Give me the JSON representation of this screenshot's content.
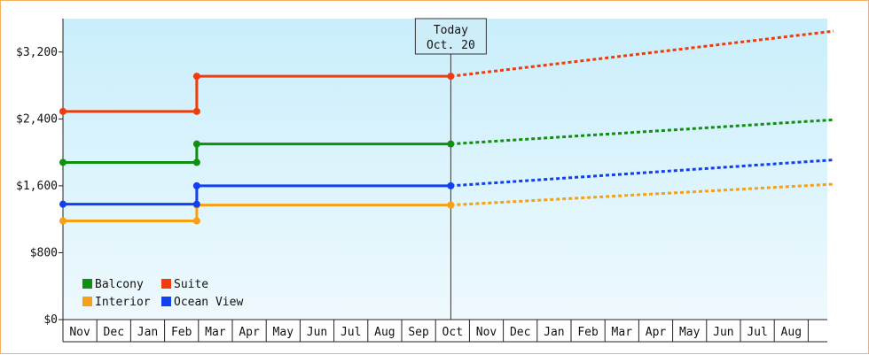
{
  "chart_data": {
    "type": "line",
    "title": "",
    "xlabel": "",
    "ylabel": "",
    "categories": [
      "Nov",
      "Dec",
      "Jan",
      "Feb",
      "Mar",
      "Apr",
      "May",
      "Jun",
      "Jul",
      "Aug",
      "Sep",
      "Oct",
      "Nov",
      "Dec",
      "Jan",
      "Feb",
      "Mar",
      "Apr",
      "May",
      "Jun",
      "Jul",
      "Aug"
    ],
    "ylim": [
      0,
      3600
    ],
    "yticks": [
      0,
      800,
      1600,
      2400,
      3200
    ],
    "ytick_labels": [
      "$0",
      "$800",
      "$1,600",
      "$2,400",
      "$3,200"
    ],
    "grid": false,
    "legend_position": "bottom-left",
    "today_marker": {
      "line1": "Today",
      "line2": "Oct. 20",
      "x": 11.45
    },
    "series": [
      {
        "name": "Balcony",
        "color": "#109010",
        "history": [
          [
            0,
            1880
          ],
          [
            3.95,
            1880
          ],
          [
            3.95,
            2100
          ],
          [
            11.45,
            2100
          ]
        ],
        "forecast": [
          [
            11.45,
            2100
          ],
          [
            22.75,
            2390
          ]
        ]
      },
      {
        "name": "Suite",
        "color": "#f03c0c",
        "history": [
          [
            0,
            2490
          ],
          [
            3.95,
            2490
          ],
          [
            3.95,
            2910
          ],
          [
            11.45,
            2910
          ]
        ],
        "forecast": [
          [
            11.45,
            2910
          ],
          [
            22.75,
            3450
          ]
        ]
      },
      {
        "name": "Interior",
        "color": "#f5a015",
        "history": [
          [
            0,
            1180
          ],
          [
            3.95,
            1180
          ],
          [
            3.95,
            1370
          ],
          [
            11.45,
            1370
          ]
        ],
        "forecast": [
          [
            11.45,
            1370
          ],
          [
            22.75,
            1620
          ]
        ]
      },
      {
        "name": "Ocean View",
        "color": "#1040f0",
        "history": [
          [
            0,
            1380
          ],
          [
            3.95,
            1380
          ],
          [
            3.95,
            1600
          ],
          [
            11.45,
            1600
          ]
        ],
        "forecast": [
          [
            11.45,
            1600
          ],
          [
            22.75,
            1910
          ]
        ]
      }
    ]
  }
}
